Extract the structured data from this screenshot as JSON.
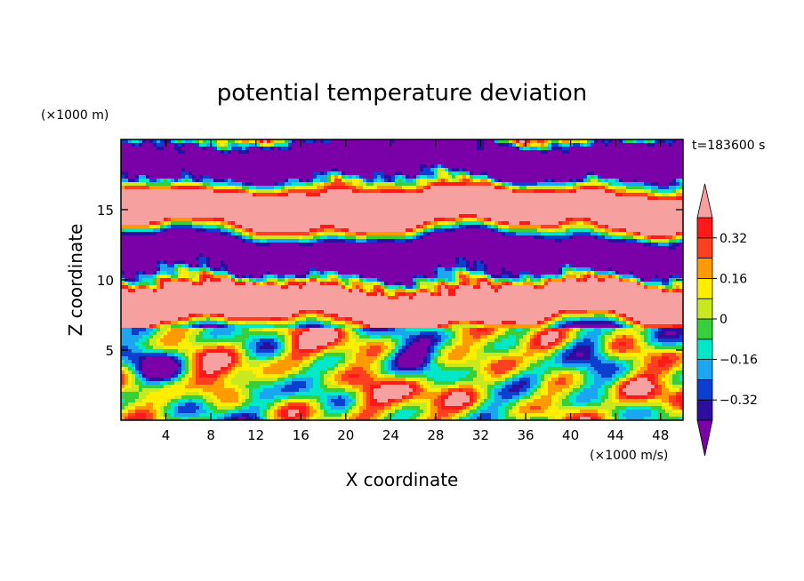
{
  "chart_data": {
    "type": "heatmap",
    "title": "potential temperature deviation",
    "xlabel": "X coordinate",
    "ylabel": "Z coordinate",
    "x_unit": "(×1000 m/s)",
    "y_unit": "(×1000 m)",
    "time_label": "t=183600 s",
    "xlim": [
      0,
      50
    ],
    "ylim": [
      0,
      20
    ],
    "x_ticks": [
      4,
      8,
      12,
      16,
      20,
      24,
      28,
      32,
      36,
      40,
      44,
      48
    ],
    "y_ticks": [
      5,
      10,
      15
    ],
    "colorbar": {
      "levels": [
        -0.4,
        -0.32,
        -0.24,
        -0.16,
        -0.08,
        0,
        0.08,
        0.16,
        0.24,
        0.32,
        0.4
      ],
      "colors": [
        "#7a00a8",
        "#2c0fa0",
        "#0a3fd0",
        "#1aa6f0",
        "#00e8c8",
        "#35d03a",
        "#c8e820",
        "#ffee00",
        "#ff9a00",
        "#ff4020",
        "#ff1a1a",
        "#f6a0a0"
      ],
      "tick_labels": [
        "-0.32",
        "-0.16",
        "0",
        "0.16",
        "0.32"
      ],
      "tick_values": [
        -0.32,
        -0.16,
        0,
        0.16,
        0.32
      ],
      "extend": "both"
    },
    "grid": false,
    "layers": [
      {
        "z_range": [
          0,
          6.5
        ],
        "description_value": "mixed low-level field, values -0.4 to 0.4"
      },
      {
        "z_range": [
          6.5,
          20
        ],
        "description_value": "alternating bands of < -0.4 and > 0.4"
      }
    ]
  }
}
